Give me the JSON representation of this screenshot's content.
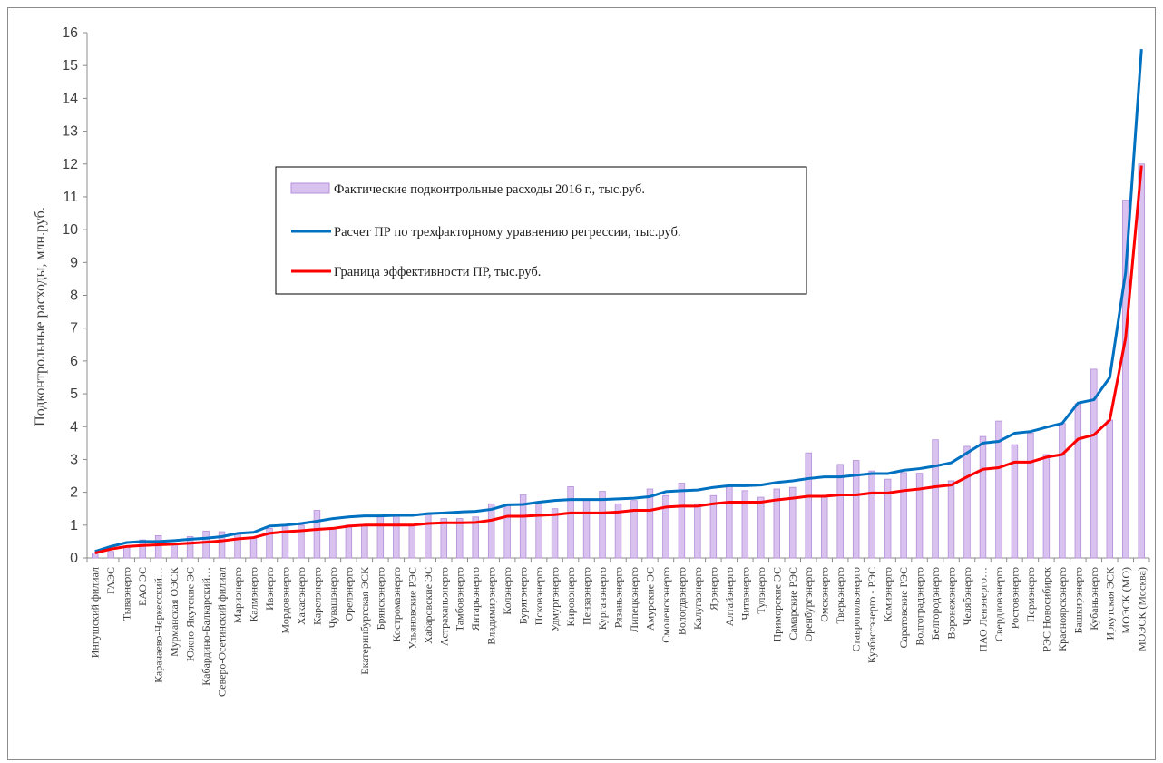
{
  "chart_data": {
    "type": "bar",
    "ylabel": "Подконтрольные расходы, млн.руб.",
    "ylim": [
      0,
      16
    ],
    "yticks": [
      0,
      1,
      2,
      3,
      4,
      5,
      6,
      7,
      8,
      9,
      10,
      11,
      12,
      13,
      14,
      15,
      16
    ],
    "grid": false,
    "legend_position": "upper-left-center",
    "colors": {
      "bar_fill": "#d9c2ef",
      "bar_stroke": "#b48fd8",
      "regression": "#0070c0",
      "frontier": "#ff0000"
    },
    "categories": [
      "Ингушский филиал",
      "ГАЭС",
      "Тываэнерго",
      "ЕАО ЭС",
      "Карачаево-Черкесский…",
      "Мурманская ОЭСК",
      "Южно-Якутские ЭС",
      "Кабардино-Балкарский…",
      "Северо-Осетинский филиал",
      "Мариэнерго",
      "Калмэнерго",
      "Ивэнерго",
      "Мордовэнерго",
      "Хакасэнерго",
      "Карелэнерго",
      "Чувашэнерго",
      "Орелэнерго",
      "Екатеринбургская ЭСК",
      "Брянскэнерго",
      "Костромаэнерго",
      "Ульяновские РЭС",
      "Хабаровские ЭС",
      "Астраханьэнерго",
      "Тамбовэнерго",
      "Янтарьэнерго",
      "Владимирэнерго",
      "Колэнерго",
      "Бурятэнерго",
      "Псковэнерго",
      "Удмуртэнерго",
      "Кировэнерго",
      "Пензаэнерго",
      "Курганэнерго",
      "Рязаньэнерго",
      "Липецкэнерго",
      "Амурские ЭС",
      "Смоленскэнерго",
      "Вологдаэнерго",
      "Калугаэнерго",
      "Ярэнерго",
      "Алтайэнерго",
      "Читаэнерго",
      "Тулэнерго",
      "Приморские ЭС",
      "Самарские РЭС",
      "Оренбургэнерго",
      "Омскэнерго",
      "Тверьэнерго",
      "Ставропольэнерго",
      "Кузбассэнерго - РЭС",
      "Комиэнерго",
      "Саратовские РЭС",
      "Волгоградэнерго",
      "Белгородэнерго",
      "Воронежэнерго",
      "Челябэнерго",
      "ПАО Ленэнерго…",
      "Свердловэнерго",
      "Ростовэнерго",
      "Пермэнерго",
      "РЭС Новосибирск",
      "Красноярскэнерго",
      "Башкирэнерго",
      "Кубаньэнерго",
      "Иркутская ЭСК",
      "МОЭСК (МО)",
      "МОЭСК (Москва)"
    ],
    "series": [
      {
        "name": "Фактические подконтрольные расходы 2016 г., тыс.руб.",
        "type": "bar",
        "values": [
          0.15,
          0.2,
          0.35,
          0.55,
          0.68,
          0.45,
          0.65,
          0.82,
          0.8,
          0.75,
          0.6,
          0.9,
          1.0,
          1.0,
          1.45,
          0.9,
          1.0,
          1.0,
          1.3,
          1.3,
          1.0,
          1.35,
          1.2,
          1.2,
          1.25,
          1.65,
          1.62,
          1.93,
          1.7,
          1.5,
          2.17,
          1.8,
          2.03,
          1.65,
          1.75,
          2.1,
          1.9,
          2.28,
          1.65,
          1.9,
          2.2,
          2.05,
          1.85,
          2.1,
          2.15,
          3.2,
          1.9,
          2.85,
          2.97,
          2.65,
          2.4,
          2.6,
          2.58,
          3.6,
          2.35,
          3.4,
          3.7,
          4.17,
          3.45,
          3.8,
          3.15,
          4.1,
          4.7,
          5.75,
          4.2,
          10.9,
          12.0
        ]
      },
      {
        "name": "Расчет ПР по трехфакторному уравнению регрессии, тыс.руб.",
        "type": "line",
        "values": [
          0.2,
          0.35,
          0.47,
          0.5,
          0.5,
          0.53,
          0.57,
          0.6,
          0.65,
          0.75,
          0.78,
          0.97,
          1.0,
          1.05,
          1.12,
          1.2,
          1.25,
          1.28,
          1.28,
          1.3,
          1.3,
          1.35,
          1.37,
          1.4,
          1.42,
          1.48,
          1.62,
          1.63,
          1.7,
          1.75,
          1.78,
          1.78,
          1.78,
          1.8,
          1.82,
          1.87,
          2.02,
          2.05,
          2.07,
          2.15,
          2.2,
          2.2,
          2.22,
          2.3,
          2.35,
          2.42,
          2.47,
          2.47,
          2.52,
          2.57,
          2.57,
          2.67,
          2.72,
          2.8,
          2.9,
          3.2,
          3.5,
          3.55,
          3.8,
          3.85,
          3.98,
          4.1,
          4.72,
          4.82,
          5.5,
          8.7,
          15.5
        ]
      },
      {
        "name": "Граница эффективности ПР, тыс.руб.",
        "type": "line",
        "values": [
          0.15,
          0.27,
          0.35,
          0.38,
          0.4,
          0.42,
          0.45,
          0.48,
          0.52,
          0.58,
          0.62,
          0.75,
          0.8,
          0.83,
          0.87,
          0.9,
          0.97,
          1.0,
          1.0,
          1.0,
          1.0,
          1.05,
          1.07,
          1.07,
          1.08,
          1.15,
          1.27,
          1.27,
          1.3,
          1.32,
          1.37,
          1.37,
          1.37,
          1.4,
          1.45,
          1.45,
          1.55,
          1.58,
          1.58,
          1.65,
          1.7,
          1.7,
          1.7,
          1.77,
          1.82,
          1.88,
          1.88,
          1.92,
          1.92,
          1.98,
          1.98,
          2.05,
          2.1,
          2.17,
          2.22,
          2.47,
          2.7,
          2.75,
          2.92,
          2.92,
          3.07,
          3.15,
          3.62,
          3.75,
          4.2,
          6.7,
          11.95
        ]
      }
    ]
  }
}
